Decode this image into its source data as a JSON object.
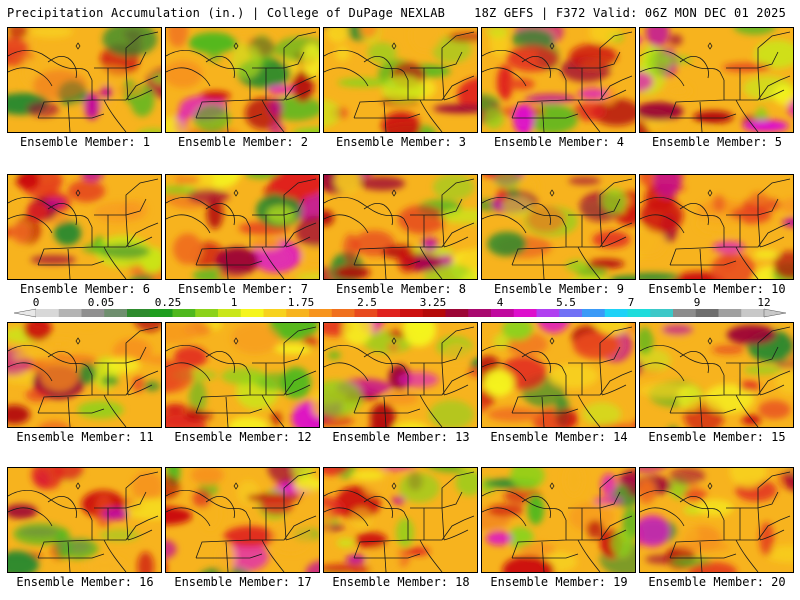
{
  "header": {
    "left": "Precipitation Accumulation (in.) | College of DuPage NEXLAB",
    "right": "18Z GEFS | F372 Valid: 06Z MON DEC 01 2025"
  },
  "panels": [
    {
      "label": "Ensemble Member: 1"
    },
    {
      "label": "Ensemble Member: 2"
    },
    {
      "label": "Ensemble Member: 3"
    },
    {
      "label": "Ensemble Member: 4"
    },
    {
      "label": "Ensemble Member: 5"
    },
    {
      "label": "Ensemble Member: 6"
    },
    {
      "label": "Ensemble Member: 7"
    },
    {
      "label": "Ensemble Member: 8"
    },
    {
      "label": "Ensemble Member: 9"
    },
    {
      "label": "Ensemble Member: 10"
    },
    {
      "label": "Ensemble Member: 11"
    },
    {
      "label": "Ensemble Member: 12"
    },
    {
      "label": "Ensemble Member: 13"
    },
    {
      "label": "Ensemble Member: 14"
    },
    {
      "label": "Ensemble Member: 15"
    },
    {
      "label": "Ensemble Member: 16"
    },
    {
      "label": "Ensemble Member: 17"
    },
    {
      "label": "Ensemble Member: 18"
    },
    {
      "label": "Ensemble Member: 19"
    },
    {
      "label": "Ensemble Member: 20"
    }
  ],
  "colorbar": {
    "tick_labels": [
      "0",
      "0.05",
      "0.25",
      "1",
      "1.75",
      "2.5",
      "3.25",
      "4",
      "5.5",
      "7",
      "9",
      "12"
    ],
    "colors": [
      "#d8d8d8",
      "#b4b4b4",
      "#909090",
      "#6f8f6f",
      "#2e8b2e",
      "#1f9e1f",
      "#4fb81e",
      "#8cd21a",
      "#c9e61a",
      "#f5f51e",
      "#f7d21e",
      "#f7b31e",
      "#f7941e",
      "#f0701e",
      "#e84a1e",
      "#e0221e",
      "#cc0f0f",
      "#b50a0a",
      "#9c0636",
      "#a8086e",
      "#c0089e",
      "#dd10cc",
      "#b040f0",
      "#7070f5",
      "#3a9af7",
      "#1ed2f7",
      "#1edcdc",
      "#3cc8c8",
      "#8c8c8c",
      "#6e6e6e",
      "#a0a0a0",
      "#c8c8c8"
    ]
  }
}
